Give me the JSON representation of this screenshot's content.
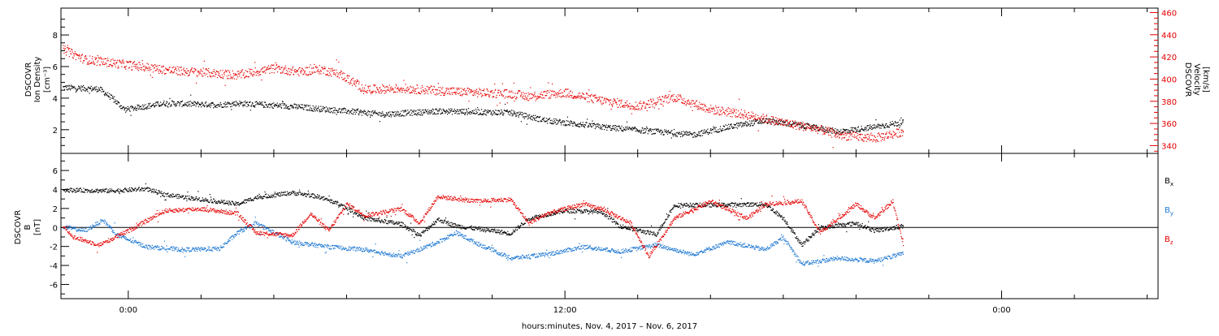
{
  "chart_data": [
    {
      "type": "scatter",
      "panel": "top",
      "left_axis_label": [
        "DSCOVR",
        "Ion Density",
        "[cm⁻³]"
      ],
      "right_axis_label": [
        "DSCOVR",
        "Velocity",
        "[km/s]"
      ],
      "left_ylim": [
        0.5,
        9.7
      ],
      "left_yticks": [
        "2",
        "4",
        "6",
        "8"
      ],
      "right_ylim": [
        333,
        464
      ],
      "right_yticks": [
        "340",
        "360",
        "380",
        "400",
        "420",
        "440",
        "460"
      ],
      "right_axis_color": "#e60000",
      "series": [
        {
          "axis": "left",
          "color": "#000000",
          "keypoints": [
            [
              -1.8,
              4.7
            ],
            [
              -0.8,
              4.6
            ],
            [
              -0.5,
              4.1
            ],
            [
              -0.1,
              3.3
            ],
            [
              1.0,
              3.7
            ],
            [
              2.5,
              3.6
            ],
            [
              3.0,
              3.7
            ],
            [
              4.5,
              3.5
            ],
            [
              5.5,
              3.3
            ],
            [
              7.0,
              3.0
            ],
            [
              8.5,
              3.2
            ],
            [
              10.5,
              3.1
            ],
            [
              11.5,
              2.6
            ],
            [
              13.0,
              2.2
            ],
            [
              14.5,
              1.9
            ],
            [
              15.5,
              1.7
            ],
            [
              16.5,
              2.2
            ],
            [
              17.5,
              2.6
            ],
            [
              18.5,
              2.3
            ],
            [
              19.5,
              1.9
            ],
            [
              20.5,
              2.2
            ],
            [
              21.3,
              2.5
            ]
          ]
        },
        {
          "axis": "right",
          "color": "#e60000",
          "keypoints": [
            [
              -1.8,
              427
            ],
            [
              -1.2,
              418
            ],
            [
              0.0,
              413
            ],
            [
              0.5,
              411
            ],
            [
              1.2,
              408
            ],
            [
              2.2,
              406
            ],
            [
              3.0,
              404
            ],
            [
              4.0,
              410
            ],
            [
              4.7,
              407
            ],
            [
              5.3,
              409
            ],
            [
              5.8,
              405
            ],
            [
              6.5,
              391
            ],
            [
              7.5,
              392
            ],
            [
              9.0,
              389
            ],
            [
              10.5,
              387
            ],
            [
              11.0,
              385
            ],
            [
              12.0,
              388
            ],
            [
              13.0,
              381
            ],
            [
              14.0,
              376
            ],
            [
              15.0,
              384
            ],
            [
              16.0,
              373
            ],
            [
              17.0,
              368
            ],
            [
              18.0,
              361
            ],
            [
              19.0,
              355
            ],
            [
              19.5,
              350
            ],
            [
              20.5,
              347
            ],
            [
              21.3,
              353
            ]
          ]
        }
      ]
    },
    {
      "type": "scatter",
      "panel": "bottom",
      "left_axis_label": [
        "DSCOVR",
        "B",
        "[nT]"
      ],
      "ylim": [
        -7.5,
        7.8
      ],
      "yticks": [
        "-6",
        "-4",
        "-2",
        "0",
        "2",
        "4",
        "6"
      ],
      "zero_line": true,
      "legend_position": "right",
      "series": [
        {
          "name_base": "B",
          "name_sub": "x",
          "color": "#000000",
          "keypoints": [
            [
              -1.8,
              4.0
            ],
            [
              -0.5,
              3.9
            ],
            [
              0.5,
              4.1
            ],
            [
              1.0,
              3.5
            ],
            [
              2.0,
              3.0
            ],
            [
              3.0,
              2.5
            ],
            [
              3.5,
              3.2
            ],
            [
              4.5,
              3.7
            ],
            [
              5.2,
              3.3
            ],
            [
              5.8,
              2.5
            ],
            [
              6.5,
              1.0
            ],
            [
              7.5,
              0.4
            ],
            [
              8.0,
              -0.8
            ],
            [
              8.5,
              0.9
            ],
            [
              9.0,
              0.2
            ],
            [
              10.0,
              -0.3
            ],
            [
              10.5,
              -0.6
            ],
            [
              11.0,
              1.0
            ],
            [
              12.0,
              1.8
            ],
            [
              13.0,
              1.7
            ],
            [
              13.5,
              0.2
            ],
            [
              14.5,
              -0.7
            ],
            [
              15.0,
              2.4
            ],
            [
              16.0,
              2.4
            ],
            [
              17.5,
              2.5
            ],
            [
              18.0,
              1.0
            ],
            [
              18.5,
              -1.8
            ],
            [
              19.0,
              0.0
            ],
            [
              20.0,
              0.5
            ],
            [
              20.5,
              -0.3
            ],
            [
              21.3,
              0.2
            ]
          ]
        },
        {
          "name_base": "B",
          "name_sub": "y",
          "color": "#1e78d2",
          "keypoints": [
            [
              -1.8,
              0.1
            ],
            [
              -1.2,
              -0.3
            ],
            [
              -0.7,
              0.8
            ],
            [
              -0.3,
              -0.8
            ],
            [
              0.5,
              -2.0
            ],
            [
              1.5,
              -2.3
            ],
            [
              2.5,
              -2.2
            ],
            [
              3.0,
              -0.5
            ],
            [
              3.5,
              0.5
            ],
            [
              4.5,
              -1.5
            ],
            [
              5.5,
              -2.0
            ],
            [
              6.5,
              -2.3
            ],
            [
              7.5,
              -3.0
            ],
            [
              8.5,
              -1.5
            ],
            [
              9.0,
              -0.5
            ],
            [
              9.5,
              -1.5
            ],
            [
              10.5,
              -3.2
            ],
            [
              11.5,
              -2.8
            ],
            [
              12.5,
              -2.0
            ],
            [
              13.5,
              -2.5
            ],
            [
              14.5,
              -1.8
            ],
            [
              15.5,
              -2.8
            ],
            [
              16.5,
              -1.5
            ],
            [
              17.5,
              -2.3
            ],
            [
              18.0,
              -1.0
            ],
            [
              18.5,
              -3.8
            ],
            [
              19.5,
              -3.2
            ],
            [
              20.5,
              -3.5
            ],
            [
              21.3,
              -2.7
            ]
          ]
        },
        {
          "name_base": "B",
          "name_sub": "z",
          "color": "#e60000",
          "keypoints": [
            [
              -1.8,
              0.2
            ],
            [
              -1.5,
              -1.0
            ],
            [
              -0.8,
              -1.8
            ],
            [
              0.0,
              -0.3
            ],
            [
              1.0,
              1.8
            ],
            [
              2.0,
              2.0
            ],
            [
              3.0,
              1.5
            ],
            [
              3.5,
              -0.5
            ],
            [
              4.5,
              -0.8
            ],
            [
              5.0,
              1.5
            ],
            [
              5.5,
              -0.3
            ],
            [
              6.0,
              2.5
            ],
            [
              6.5,
              1.3
            ],
            [
              7.5,
              2.0
            ],
            [
              8.0,
              0.5
            ],
            [
              8.5,
              3.3
            ],
            [
              9.5,
              2.8
            ],
            [
              10.5,
              3.0
            ],
            [
              11.0,
              0.5
            ],
            [
              11.5,
              1.5
            ],
            [
              12.5,
              2.5
            ],
            [
              13.0,
              2.0
            ],
            [
              13.8,
              0.5
            ],
            [
              14.3,
              -3.0
            ],
            [
              15.0,
              1.0
            ],
            [
              16.0,
              2.8
            ],
            [
              17.0,
              1.0
            ],
            [
              17.5,
              2.5
            ],
            [
              18.5,
              2.8
            ],
            [
              19.0,
              -0.5
            ],
            [
              20.0,
              2.5
            ],
            [
              20.5,
              1.0
            ],
            [
              21.0,
              2.8
            ],
            [
              21.3,
              -2.0
            ]
          ]
        }
      ]
    }
  ],
  "x_axis": {
    "xlim": [
      -1.85,
      28.3
    ],
    "label": "hours:minutes, Nov.  4, 2017 – Nov.  6, 2017",
    "major_ticks": [
      {
        "value": 0,
        "label": "0:00"
      },
      {
        "value": 12,
        "label": "12:00"
      },
      {
        "value": 24,
        "label": "0:00"
      }
    ],
    "minor_tick_step": 2
  }
}
